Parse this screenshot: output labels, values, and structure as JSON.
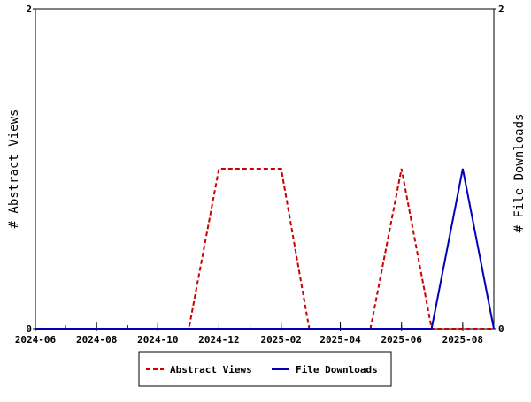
{
  "chart_data": {
    "type": "line",
    "x": [
      "2024-06",
      "2024-07",
      "2024-08",
      "2024-09",
      "2024-10",
      "2024-11",
      "2024-12",
      "2025-01",
      "2025-02",
      "2025-03",
      "2025-04",
      "2025-05",
      "2025-06",
      "2025-07",
      "2025-08",
      "2025-09"
    ],
    "x_tick_labels": [
      "2024-06",
      "2024-08",
      "2024-10",
      "2024-12",
      "2025-02",
      "2025-04",
      "2025-06",
      "2025-08"
    ],
    "series": [
      {
        "name": "Abstract Views",
        "axis": "left",
        "color": "#cc0000",
        "style": "dashed",
        "values": [
          0,
          0,
          0,
          0,
          0,
          0,
          1,
          1,
          1,
          0,
          0,
          0,
          1,
          0,
          0,
          0
        ]
      },
      {
        "name": "File Downloads",
        "axis": "right",
        "color": "#0000bb",
        "style": "solid",
        "values": [
          0,
          0,
          0,
          0,
          0,
          0,
          0,
          0,
          0,
          0,
          0,
          0,
          0,
          0,
          1,
          0
        ]
      }
    ],
    "ylabel_left": "# Abstract Views",
    "ylabel_right": "# File Downloads",
    "ylim_left": [
      0,
      2
    ],
    "ylim_right": [
      0,
      2
    ],
    "y_tick_labels_left": [
      "0",
      "2"
    ],
    "y_tick_labels_right": [
      "0",
      "2"
    ],
    "grid": false,
    "legend_placement": "bottom"
  }
}
